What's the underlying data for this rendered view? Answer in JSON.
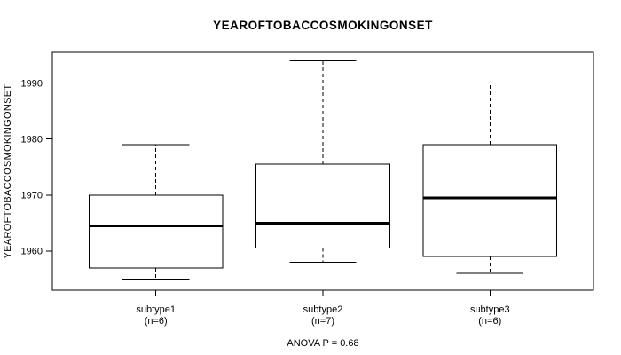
{
  "title": "YEAROFTOBACCOSMOKINGONSET",
  "colors": {
    "line": "#000000",
    "box_fill": "#ffffff",
    "background": "#ffffff",
    "text": "#000000"
  },
  "chart_data": {
    "type": "boxplot",
    "title": "YEAROFTOBACCOSMOKINGONSET",
    "ylabel": "YEAROFTOBACCOSMOKINGONSET",
    "xlabel": "",
    "annotation": "ANOVA P = 0.68",
    "ylim": [
      1953,
      1995.5
    ],
    "yticks": [
      1960,
      1970,
      1980,
      1990
    ],
    "grid": false,
    "legend": null,
    "categories": [
      "subtype1",
      "subtype2",
      "subtype3"
    ],
    "category_sublabels": [
      "(n=6)",
      "(n=7)",
      "(n=6)"
    ],
    "series": [
      {
        "name": "subtype1",
        "n": 6,
        "whisker_low": 1955,
        "q1": 1957,
        "median": 1964.5,
        "q3": 1970,
        "whisker_high": 1979
      },
      {
        "name": "subtype2",
        "n": 7,
        "whisker_low": 1958,
        "q1": 1960.5,
        "median": 1965,
        "q3": 1975.5,
        "whisker_high": 1994
      },
      {
        "name": "subtype3",
        "n": 6,
        "whisker_low": 1956,
        "q1": 1959,
        "median": 1969.5,
        "q3": 1979,
        "whisker_high": 1990
      }
    ]
  }
}
